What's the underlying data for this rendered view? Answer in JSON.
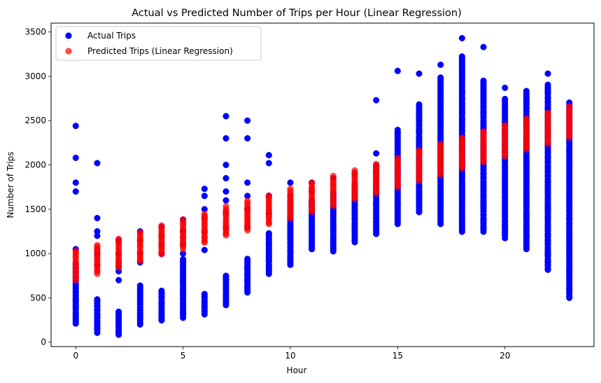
{
  "chart_data": {
    "type": "scatter",
    "title": "Actual vs Predicted Number of Trips per Hour (Linear Regression)",
    "xlabel": "Hour",
    "ylabel": "Number of Trips",
    "xlim": [
      -1.15,
      24.15
    ],
    "ylim": [
      -50,
      3600
    ],
    "xticks": [
      0,
      5,
      10,
      15,
      20
    ],
    "yticks": [
      0,
      500,
      1000,
      1500,
      2000,
      2500,
      3000,
      3500
    ],
    "grid": false,
    "legend_position": "top-left",
    "series": [
      {
        "name": "Actual Trips",
        "color": "#0000ff",
        "alpha": 1.0,
        "by_hour": [
          {
            "x": 0,
            "min": 210,
            "max": 900,
            "outliers": [
              1050,
              1700,
              1800,
              2080,
              2440
            ]
          },
          {
            "x": 1,
            "min": 110,
            "max": 490,
            "outliers": [
              870,
              1000,
              1200,
              1250,
              1400,
              2020
            ]
          },
          {
            "x": 2,
            "min": 80,
            "max": 360,
            "outliers": [
              700,
              800,
              850,
              900,
              1000,
              1150
            ]
          },
          {
            "x": 3,
            "min": 200,
            "max": 650,
            "outliers": [
              900,
              1000,
              1150,
              1250
            ]
          },
          {
            "x": 4,
            "min": 250,
            "max": 600,
            "outliers": [
              1000,
              1100,
              1200,
              1300
            ]
          },
          {
            "x": 5,
            "min": 280,
            "max": 950,
            "outliers": [
              1000,
              1100,
              1250,
              1380
            ]
          },
          {
            "x": 6,
            "min": 320,
            "max": 540,
            "outliers": [
              1040,
              1250,
              1400,
              1500,
              1650,
              1730
            ]
          },
          {
            "x": 7,
            "min": 420,
            "max": 750,
            "outliers": [
              1300,
              1450,
              1600,
              1700,
              1850,
              2000,
              2300,
              2550
            ]
          },
          {
            "x": 8,
            "min": 560,
            "max": 950,
            "outliers": [
              1300,
              1500,
              1650,
              1800,
              2300,
              2500
            ]
          },
          {
            "x": 9,
            "min": 770,
            "max": 1250,
            "outliers": [
              1450,
              1650,
              2020,
              2110
            ]
          },
          {
            "x": 10,
            "min": 870,
            "max": 1600,
            "outliers": [
              1650,
              1800
            ]
          },
          {
            "x": 11,
            "min": 1050,
            "max": 1600,
            "outliers": [
              1700,
              1800
            ]
          },
          {
            "x": 12,
            "min": 1030,
            "max": 1700,
            "outliers": [
              1850
            ]
          },
          {
            "x": 13,
            "min": 1130,
            "max": 1800,
            "outliers": [
              1900
            ]
          },
          {
            "x": 14,
            "min": 1220,
            "max": 2000,
            "outliers": [
              2130,
              2730
            ]
          },
          {
            "x": 15,
            "min": 1340,
            "max": 2400,
            "outliers": [
              1560,
              3060
            ]
          },
          {
            "x": 16,
            "min": 1470,
            "max": 2700,
            "outliers": [
              1680,
              3030
            ]
          },
          {
            "x": 17,
            "min": 1340,
            "max": 3000,
            "outliers": [
              1650,
              3130
            ]
          },
          {
            "x": 18,
            "min": 1250,
            "max": 3250,
            "outliers": [
              1700,
              3430
            ]
          },
          {
            "x": 19,
            "min": 1250,
            "max": 2950,
            "outliers": [
              1550,
              3330
            ]
          },
          {
            "x": 20,
            "min": 1180,
            "max": 2750,
            "outliers": [
              1300,
              2870
            ]
          },
          {
            "x": 21,
            "min": 1050,
            "max": 2850,
            "outliers": [
              1200,
              1400
            ]
          },
          {
            "x": 22,
            "min": 810,
            "max": 2900,
            "outliers": [
              1000,
              1200,
              1500,
              3030
            ]
          },
          {
            "x": 23,
            "min": 500,
            "max": 2700,
            "outliers": [
              600,
              800,
              1050,
              1220,
              1400
            ]
          }
        ]
      },
      {
        "name": "Predicted Trips (Linear Regression)",
        "color": "#ff0000",
        "alpha": 0.7,
        "by_hour": [
          {
            "x": 0,
            "min": 700,
            "max": 1040
          },
          {
            "x": 1,
            "min": 770,
            "max": 1110
          },
          {
            "x": 2,
            "min": 840,
            "max": 1180
          },
          {
            "x": 3,
            "min": 910,
            "max": 1250
          },
          {
            "x": 4,
            "min": 990,
            "max": 1320
          },
          {
            "x": 5,
            "min": 1050,
            "max": 1390
          },
          {
            "x": 6,
            "min": 1120,
            "max": 1460
          },
          {
            "x": 7,
            "min": 1200,
            "max": 1540
          },
          {
            "x": 8,
            "min": 1260,
            "max": 1610
          },
          {
            "x": 9,
            "min": 1330,
            "max": 1680
          },
          {
            "x": 10,
            "min": 1400,
            "max": 1750
          },
          {
            "x": 11,
            "min": 1470,
            "max": 1820
          },
          {
            "x": 12,
            "min": 1540,
            "max": 1880
          },
          {
            "x": 13,
            "min": 1610,
            "max": 1950
          },
          {
            "x": 14,
            "min": 1680,
            "max": 2020
          },
          {
            "x": 15,
            "min": 1750,
            "max": 2090
          },
          {
            "x": 16,
            "min": 1820,
            "max": 2180
          },
          {
            "x": 17,
            "min": 1890,
            "max": 2250
          },
          {
            "x": 18,
            "min": 1960,
            "max": 2330
          },
          {
            "x": 19,
            "min": 2030,
            "max": 2400
          },
          {
            "x": 20,
            "min": 2100,
            "max": 2470
          },
          {
            "x": 21,
            "min": 2170,
            "max": 2540
          },
          {
            "x": 22,
            "min": 2240,
            "max": 2600
          },
          {
            "x": 23,
            "min": 2310,
            "max": 2670
          }
        ]
      }
    ]
  }
}
